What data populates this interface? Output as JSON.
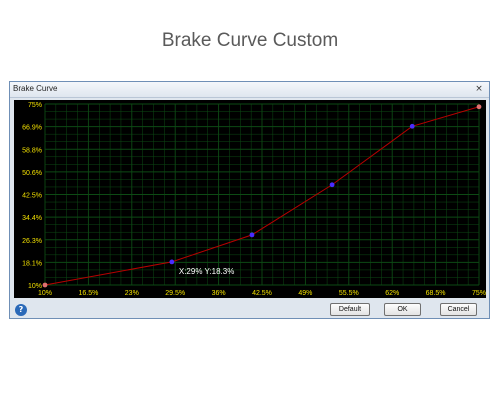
{
  "page": {
    "title": "Brake Curve Custom"
  },
  "window": {
    "title": "Brake Curve",
    "close_glyph": "×",
    "help_glyph": "?",
    "buttons": {
      "default": "Default",
      "ok": "OK",
      "cancel": "Cancel"
    }
  },
  "colors": {
    "background": "#000000",
    "grid": "#0d4a14",
    "curve": "#b80000",
    "point": "#4a2cff",
    "endpoint": "#e07070",
    "tick_label": "#f2e000",
    "readout": "#ffffff"
  },
  "readout": "X:29% Y:18.3%",
  "chart_data": {
    "type": "line",
    "title": "Brake Curve",
    "xlabel": "",
    "ylabel": "",
    "x_ticks": [
      "10%",
      "16.5%",
      "23%",
      "29.5%",
      "36%",
      "42.5%",
      "49%",
      "55.5%",
      "62%",
      "68.5%",
      "75%"
    ],
    "y_ticks": [
      "10%",
      "18.1%",
      "26.3%",
      "34.4%",
      "42.5%",
      "50.6%",
      "58.8%",
      "66.9%",
      "75%"
    ],
    "xlim": [
      10,
      75
    ],
    "ylim": [
      10,
      75
    ],
    "grid": true,
    "x": [
      10,
      29,
      41,
      53,
      65,
      75
    ],
    "y": [
      10,
      18.3,
      28,
      46,
      67,
      74
    ]
  }
}
